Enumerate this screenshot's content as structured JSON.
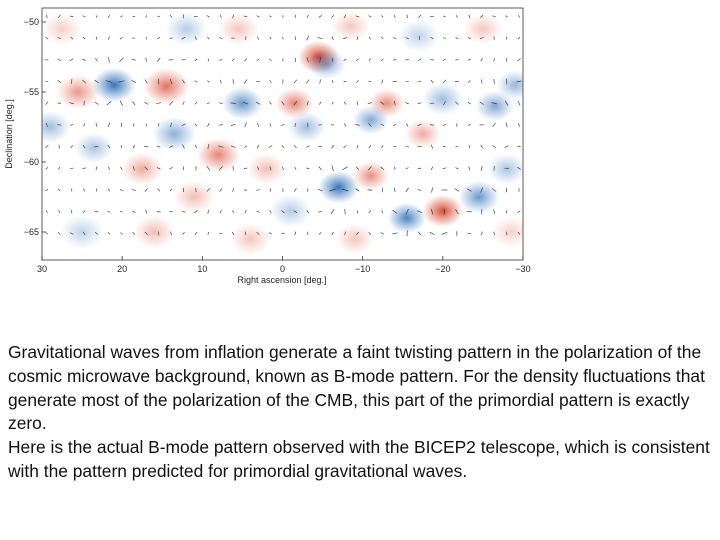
{
  "chart_data": {
    "type": "heatmap",
    "title": "",
    "xlabel": "Right ascension [deg.]",
    "ylabel": "Declination [deg.]",
    "xlim": [
      30,
      -30
    ],
    "ylim": [
      -67,
      -49
    ],
    "x_ticks": [
      30,
      20,
      10,
      0,
      -10,
      -20,
      -30
    ],
    "x_tick_labels": [
      "30",
      "20",
      "10",
      "0",
      "−10",
      "−20",
      "−30"
    ],
    "y_ticks": [
      -50,
      -55,
      -60,
      -65
    ],
    "y_tick_labels": [
      "−50",
      "−55",
      "−60",
      "−65"
    ],
    "grid": false,
    "colors": {
      "positive": "#d73a1e",
      "negative": "#1f66b4",
      "vector": "#222222"
    },
    "blobs": [
      {
        "ra": -4.5,
        "dec": -52.5,
        "amp": 1.0,
        "size": 1.7
      },
      {
        "ra": 21.0,
        "dec": -54.5,
        "amp": -0.95,
        "size": 1.8
      },
      {
        "ra": 14.5,
        "dec": -54.6,
        "amp": 0.75,
        "size": 1.9
      },
      {
        "ra": 25.5,
        "dec": -55.0,
        "amp": 0.55,
        "size": 1.8
      },
      {
        "ra": 29.0,
        "dec": -57.5,
        "amp": -0.45,
        "size": 1.7
      },
      {
        "ra": 5.0,
        "dec": -55.8,
        "amp": -0.7,
        "size": 1.7
      },
      {
        "ra": -1.5,
        "dec": -55.8,
        "amp": 0.65,
        "size": 1.6
      },
      {
        "ra": -5.5,
        "dec": -53.0,
        "amp": -0.55,
        "size": 1.6
      },
      {
        "ra": -13.0,
        "dec": -55.8,
        "amp": 0.6,
        "size": 1.5
      },
      {
        "ra": -11.0,
        "dec": -57.0,
        "amp": -0.6,
        "size": 1.5
      },
      {
        "ra": -20.0,
        "dec": -55.5,
        "amp": -0.45,
        "size": 1.7
      },
      {
        "ra": -26.5,
        "dec": -56.0,
        "amp": -0.6,
        "size": 1.6
      },
      {
        "ra": -29.0,
        "dec": -54.5,
        "amp": -0.5,
        "size": 1.5
      },
      {
        "ra": -17.5,
        "dec": -58.0,
        "amp": 0.45,
        "size": 1.5
      },
      {
        "ra": -3.0,
        "dec": -57.5,
        "amp": -0.45,
        "size": 1.6
      },
      {
        "ra": 8.0,
        "dec": -59.5,
        "amp": 0.65,
        "size": 1.8
      },
      {
        "ra": 13.5,
        "dec": -58.0,
        "amp": -0.55,
        "size": 1.8
      },
      {
        "ra": 17.5,
        "dec": -60.5,
        "amp": 0.45,
        "size": 1.7
      },
      {
        "ra": 23.5,
        "dec": -59.0,
        "amp": -0.4,
        "size": 1.6
      },
      {
        "ra": 11.0,
        "dec": -62.5,
        "amp": 0.35,
        "size": 1.7
      },
      {
        "ra": -7.0,
        "dec": -61.8,
        "amp": -0.95,
        "size": 1.7
      },
      {
        "ra": -11.0,
        "dec": -61.0,
        "amp": 0.6,
        "size": 1.5
      },
      {
        "ra": -15.5,
        "dec": -64.0,
        "amp": -0.85,
        "size": 1.6
      },
      {
        "ra": -20.0,
        "dec": -63.5,
        "amp": 0.95,
        "size": 1.7
      },
      {
        "ra": -24.5,
        "dec": -62.5,
        "amp": -0.7,
        "size": 1.7
      },
      {
        "ra": -28.0,
        "dec": -60.5,
        "amp": -0.4,
        "size": 1.6
      },
      {
        "ra": -1.0,
        "dec": -63.5,
        "amp": -0.35,
        "size": 1.7
      },
      {
        "ra": 2.0,
        "dec": -60.5,
        "amp": 0.35,
        "size": 1.6
      },
      {
        "ra": 5.5,
        "dec": -50.5,
        "amp": 0.3,
        "size": 1.7
      },
      {
        "ra": 12.0,
        "dec": -50.5,
        "amp": -0.35,
        "size": 1.7
      },
      {
        "ra": 27.5,
        "dec": -50.5,
        "amp": 0.25,
        "size": 1.7
      },
      {
        "ra": -8.5,
        "dec": -50.3,
        "amp": 0.3,
        "size": 1.6
      },
      {
        "ra": -17.0,
        "dec": -51.0,
        "amp": -0.3,
        "size": 1.7
      },
      {
        "ra": -25.0,
        "dec": -50.5,
        "amp": 0.3,
        "size": 1.6
      },
      {
        "ra": 25.0,
        "dec": -65.0,
        "amp": -0.3,
        "size": 1.8
      },
      {
        "ra": 16.0,
        "dec": -65.0,
        "amp": 0.35,
        "size": 1.7
      },
      {
        "ra": 4.0,
        "dec": -65.5,
        "amp": 0.3,
        "size": 1.7
      },
      {
        "ra": -9.0,
        "dec": -65.5,
        "amp": 0.3,
        "size": 1.6
      },
      {
        "ra": -28.5,
        "dec": -65.0,
        "amp": 0.25,
        "size": 1.6
      }
    ]
  },
  "caption": {
    "paragraph_1": "Gravitational waves from inflation generate a faint twisting pattern in the polarization of the cosmic microwave background, known as  B-mode pattern. For the density fluctuations that generate most of the polarization of the CMB, this part of the primordial pattern is exactly zero.",
    "paragraph_2": "Here is the actual B-mode pattern observed with the BICEP2 telescope, which is consistent with the pattern predicted for primordial gravitational waves."
  }
}
